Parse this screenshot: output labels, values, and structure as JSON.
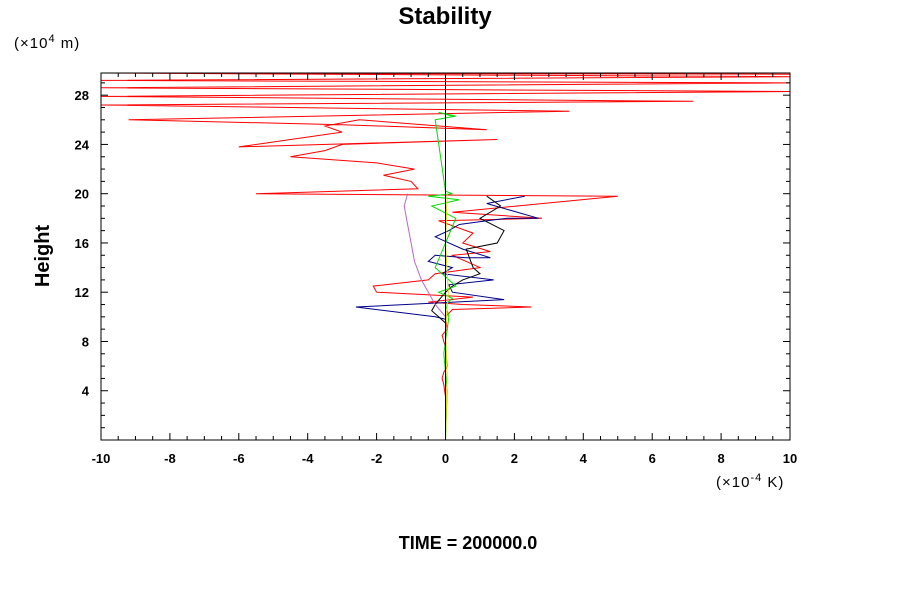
{
  "chart_data": {
    "type": "line",
    "title": "Stability",
    "ylabel": "Height",
    "y_unit": "(×10",
    "y_unit_exp": "4",
    "y_unit_tail": " m)",
    "x_unit": "(×10",
    "x_unit_exp": "-4",
    "x_unit_tail": " K)",
    "footer": "TIME = 200000.0",
    "xlim": [
      -10,
      10
    ],
    "ylim": [
      0,
      29.8
    ],
    "x_ticks": [
      -10,
      -8,
      -6,
      -4,
      -2,
      0,
      2,
      4,
      6,
      8,
      10
    ],
    "x_tick_labels": [
      "-10",
      "-8",
      "-6",
      "-4",
      "-2",
      "0",
      "2",
      "4",
      "6",
      "8",
      "10"
    ],
    "y_ticks": [
      4,
      8,
      12,
      16,
      20,
      24,
      28
    ],
    "y_tick_labels": [
      "4",
      "8",
      "12",
      "16",
      "20",
      "24",
      "28"
    ],
    "grid": false,
    "legend": "none",
    "series": [
      {
        "color": "#ff0000",
        "x": [
          0,
          0,
          -0.05,
          -0.1,
          -0.05,
          0.05,
          0,
          -0.1,
          0.05,
          0,
          0.2,
          2.5,
          0.5,
          -0.5,
          0.8,
          -2.0,
          -2.1,
          -0.5,
          -0.3,
          1.0,
          0.6,
          0.2,
          1.3,
          0.5,
          0.8,
          -0.2,
          2.8,
          0.2,
          5.0,
          -5.5,
          -0.8,
          -1.0,
          -1.8,
          -0.9,
          -2.0,
          -4.5,
          -3.5,
          -3.0,
          1.5,
          -6.0,
          -3.0,
          -3.5,
          -2.5,
          1.2,
          -3.0,
          -9.2,
          3.6,
          -10,
          7.2,
          -10,
          10,
          -10,
          10,
          -10,
          10,
          -10,
          10
        ],
        "y": [
          0,
          3.5,
          4.5,
          5.0,
          5.5,
          6.0,
          7.5,
          8.5,
          9.0,
          10.0,
          10.6,
          10.8,
          11.0,
          11.2,
          11.6,
          12.0,
          12.5,
          13.0,
          13.5,
          14.0,
          14.5,
          15.0,
          15.3,
          16.0,
          16.8,
          17.8,
          18.0,
          18.5,
          19.8,
          20.0,
          20.4,
          21.0,
          21.5,
          22.0,
          22.5,
          23.0,
          23.5,
          24.0,
          24.4,
          23.8,
          25.0,
          25.5,
          26.0,
          25.2,
          25.6,
          26.0,
          26.7,
          27.2,
          27.5,
          27.9,
          28.3,
          28.6,
          29.0,
          29.2,
          29.5,
          29.8,
          29.7
        ]
      },
      {
        "color": "#00008b",
        "x": [
          0,
          0,
          -0.3,
          -2.6,
          1.7,
          0.2,
          0.1,
          1.4,
          -0.1,
          0.2,
          -0.5,
          -0.3,
          0.6,
          1.3,
          0.5,
          -0.3,
          0.1,
          0.4,
          1.2,
          1.8,
          2.7,
          1.2,
          2.3
        ],
        "y": [
          0,
          9.8,
          10.0,
          10.8,
          11.4,
          12.0,
          12.6,
          13.0,
          13.5,
          14.0,
          14.5,
          15.0,
          14.8,
          14.8,
          15.5,
          16.5,
          17.0,
          17.5,
          17.8,
          18.0,
          18.0,
          19.2,
          19.8
        ]
      },
      {
        "color": "#000000",
        "x": [
          0,
          0,
          -0.2,
          -0.4,
          -0.3,
          0,
          0.2,
          0.5,
          1.0,
          0.8,
          0.6,
          1.5,
          1.7,
          1.0,
          1.6,
          1.2
        ],
        "y": [
          0,
          9.5,
          10.0,
          10.5,
          11.0,
          12.0,
          12.5,
          13.0,
          13.5,
          14.0,
          15.5,
          16.0,
          17.0,
          18.0,
          19.0,
          19.8
        ]
      },
      {
        "color": "#bb66cc",
        "x": [
          0,
          0,
          -0.3,
          -0.5,
          -0.7,
          -0.9,
          -1.0,
          -1.1,
          -1.2,
          -1.1
        ],
        "y": [
          0,
          10.0,
          11.0,
          12.0,
          13.0,
          14.5,
          16.0,
          17.5,
          19.0,
          20.0
        ]
      },
      {
        "color": "#00dd00",
        "x": [
          0,
          0.05,
          -0.05,
          0.1,
          0,
          0.2,
          -0.2,
          0.3,
          -0.3,
          0,
          0.3,
          -0.4,
          0.4,
          -0.5,
          0.2,
          0,
          -0.3,
          0.3,
          -0.2,
          0.2,
          0
        ],
        "y": [
          0,
          4.0,
          7.0,
          10.0,
          11.0,
          11.5,
          12.0,
          12.5,
          14.0,
          16.0,
          18.0,
          19.0,
          19.5,
          19.8,
          20.0,
          20.2,
          26.0,
          26.3,
          26.6,
          26.3,
          26.5
        ]
      },
      {
        "color": "#dddd00",
        "x": [
          0,
          0.05,
          0,
          0.08,
          0,
          0.05
        ],
        "y": [
          0,
          5,
          9,
          12,
          16,
          20
        ]
      }
    ]
  }
}
